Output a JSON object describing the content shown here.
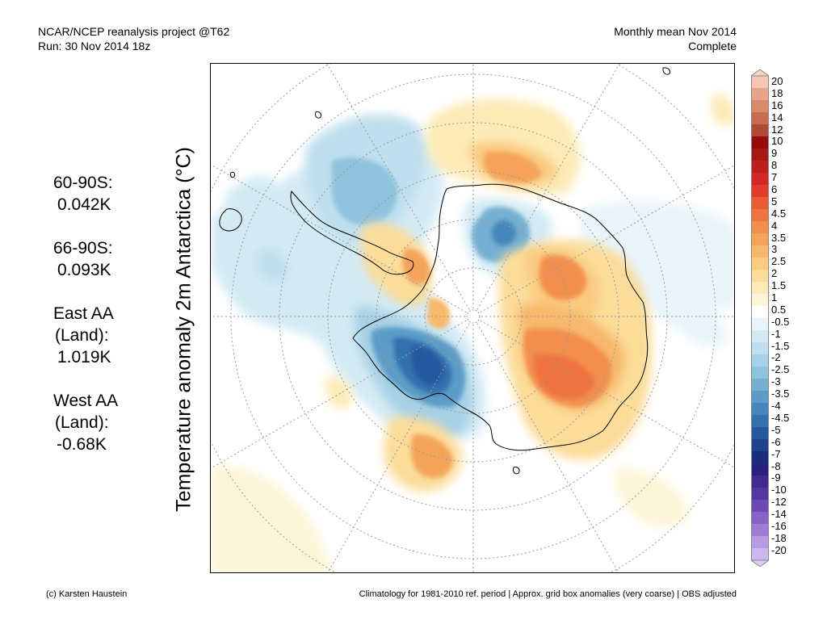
{
  "header": {
    "source": "NCAR/NCEP reanalysis project @T62",
    "run": "Run: 30 Nov 2014 18z",
    "period": "Monthly mean Nov 2014",
    "status": "Complete"
  },
  "stats": [
    {
      "label": "60-90S:",
      "value": "0.042K"
    },
    {
      "label": "66-90S:",
      "value": "0.093K"
    },
    {
      "label": "East AA",
      "label2": "(Land):",
      "value": "1.019K"
    },
    {
      "label": "West AA",
      "label2": "(Land):",
      "value": "-0.68K"
    }
  ],
  "map": {
    "y_label": "Temperature anomaly 2m Antarctica (°C)"
  },
  "colorbar": {
    "levels": [
      "20",
      "18",
      "16",
      "14",
      "12",
      "10",
      "9",
      "8",
      "7",
      "6",
      "5",
      "4.5",
      "4",
      "3.5",
      "3",
      "2.5",
      "2",
      "1.5",
      "1",
      "0.5",
      "-0.5",
      "-1",
      "-1.5",
      "-2",
      "-2.5",
      "-3",
      "-3.5",
      "-4",
      "-4.5",
      "-5",
      "-6",
      "-7",
      "-8",
      "-9",
      "-10",
      "-12",
      "-14",
      "-16",
      "-18",
      "-20"
    ],
    "colors": [
      "#f3c7b3",
      "#e7a489",
      "#d98a6c",
      "#c86a4e",
      "#b14a35",
      "#960c0c",
      "#a81616",
      "#bd1e1e",
      "#d32626",
      "#e13c2a",
      "#ea5a35",
      "#ef7340",
      "#f38f4d",
      "#f5a35a",
      "#f7b86c",
      "#f9cb80",
      "#fbdc98",
      "#fdebb7",
      "#fdf5d8",
      "#ffffff",
      "#e8f4fa",
      "#d3eaf4",
      "#bfdfee",
      "#a7d1e6",
      "#8fc2dd",
      "#75b0d3",
      "#5b9cc8",
      "#4587bc",
      "#3370ae",
      "#25599f",
      "#1d438f",
      "#1a2d7c",
      "#2a2080",
      "#3f2a8f",
      "#5436a2",
      "#6b4ab6",
      "#8462c6",
      "#9d7ed4",
      "#b69be1",
      "#cdb8ed"
    ],
    "top_cap": "#f7d4c5",
    "bottom_cap": "#dccbf3"
  },
  "footer": {
    "credit": "(c) Karsten Haustein",
    "note": "Climatology for 1981-2010 ref. period | Approx. grid box anomalies (very coarse) | OBS adjusted"
  }
}
